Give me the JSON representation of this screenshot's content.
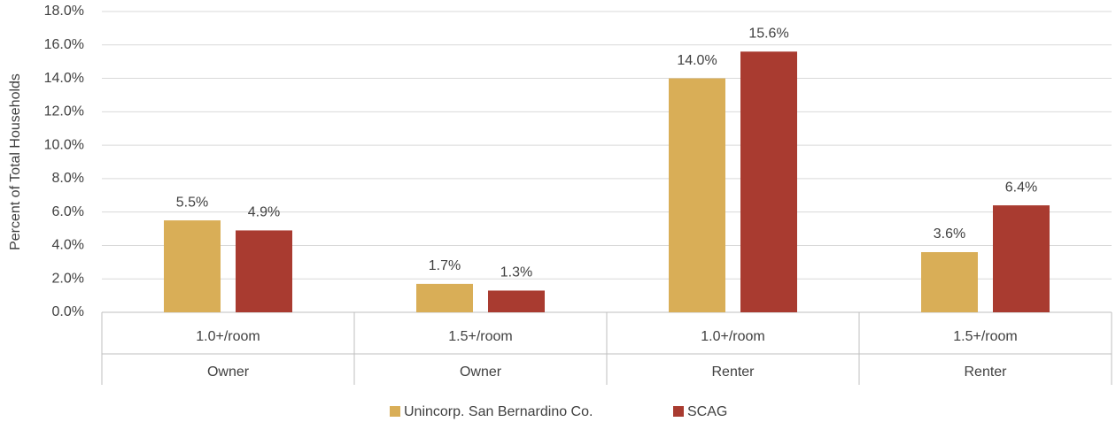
{
  "chart_data": {
    "type": "bar",
    "y_label": "Percent of Total Households",
    "categories": [
      "1.0+/room",
      "1.5+/room",
      "1.0+/room",
      "1.5+/room"
    ],
    "groups": [
      "Owner",
      "Owner",
      "Renter",
      "Renter"
    ],
    "series": [
      {
        "name": "Unincorp. San Bernardino Co.",
        "color": "#D9AE57",
        "values": [
          5.5,
          1.7,
          14.0,
          3.6
        ],
        "value_labels": [
          "5.5%",
          "1.7%",
          "14.0%",
          "3.6%"
        ]
      },
      {
        "name": "SCAG",
        "color": "#A93B30",
        "values": [
          4.9,
          1.3,
          15.6,
          6.4
        ],
        "value_labels": [
          "4.9%",
          "1.3%",
          "15.6%",
          "6.4%"
        ]
      }
    ],
    "ylim": [
      0,
      18
    ],
    "yticks": [
      {
        "value": 0,
        "label": "0.0%"
      },
      {
        "value": 2,
        "label": "2.0%"
      },
      {
        "value": 4,
        "label": "4.0%"
      },
      {
        "value": 6,
        "label": "6.0%"
      },
      {
        "value": 8,
        "label": "8.0%"
      },
      {
        "value": 10,
        "label": "10.0%"
      },
      {
        "value": 12,
        "label": "12.0%"
      },
      {
        "value": 14,
        "label": "14.0%"
      },
      {
        "value": 16,
        "label": "16.0%"
      },
      {
        "value": 18,
        "label": "18.0%"
      }
    ],
    "grid": true,
    "legend": "bottom"
  }
}
